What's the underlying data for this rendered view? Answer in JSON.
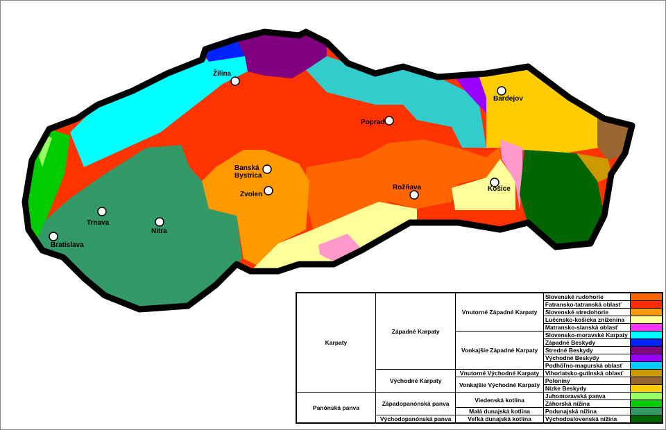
{
  "cities": [
    {
      "name": "Žilina"
    },
    {
      "name": "Poprad"
    },
    {
      "name": "Bardejov"
    },
    {
      "name": "Banská"
    },
    {
      "name": "Bystrica"
    },
    {
      "name": "Zvolen"
    },
    {
      "name": "Rožňava"
    },
    {
      "name": "Košice"
    },
    {
      "name": "Trnava"
    },
    {
      "name": "Nitra"
    },
    {
      "name": "Bratislava"
    }
  ],
  "legend": {
    "l1": [
      "Karpaty",
      "Panónská panva"
    ],
    "l2": [
      "Západné Karpaty",
      "Východné Karpaty",
      "Západopanónská panva",
      "Východopanónská panva"
    ],
    "l3": [
      "Vnutorné Západné Karpaty",
      "Vonkajšie Západné Karpaty",
      "Vnutorné Východné Karpaty",
      "Vonkajšie Východné Karpaty",
      "Viedenská kotlina",
      "Malá dunajská kotlina",
      "Veľká dunajská kotlina"
    ],
    "units": [
      {
        "label": "Slovenské rudohorie",
        "color": "#ff6600"
      },
      {
        "label": "Fatransko-tatranská oblasť",
        "color": "#ff2a00"
      },
      {
        "label": "Slovenské stredohorie",
        "color": "#ff9900"
      },
      {
        "label": "Lučensko-košicka zníženina",
        "color": "#ffff99"
      },
      {
        "label": "Matransko-slanská oblasť",
        "color": "#ff33ff"
      },
      {
        "label": "Slovensko-moravské Karpaty",
        "color": "#00ffff"
      },
      {
        "label": "Západné Beskydy",
        "color": "#0022ff"
      },
      {
        "label": "Stredné Beskydy",
        "color": "#800080"
      },
      {
        "label": "Východné Beskydy",
        "color": "#9900ff"
      },
      {
        "label": "Podhôľno-magurská oblasť",
        "color": "#00ccff"
      },
      {
        "label": "Vihorlatsko-gutinská oblasť",
        "color": "#cc9900"
      },
      {
        "label": "Poloniny",
        "color": "#996633"
      },
      {
        "label": "Nízke Beskydy",
        "color": "#ffcc00"
      },
      {
        "label": "Juhomoravská panva",
        "color": "#99ff66"
      },
      {
        "label": "Záhorská nížina",
        "color": "#00cc00"
      },
      {
        "label": "Podunajská nížina",
        "color": "#339966"
      },
      {
        "label": "Východoslovenská nížina",
        "color": "#006600"
      }
    ]
  }
}
